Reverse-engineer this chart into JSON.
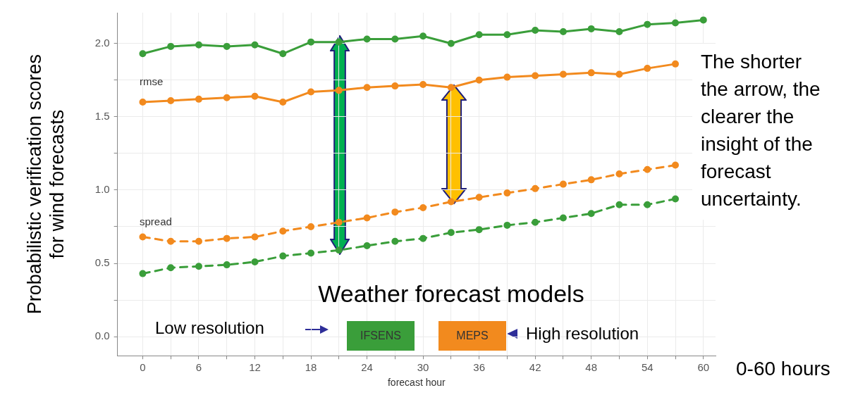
{
  "chart_data": {
    "type": "line",
    "xlabel": "forecast hour",
    "ylabel": "Probabilistic verification scores for wind forecasts",
    "legend_title": "Weather forecast models",
    "x": [
      0,
      3,
      6,
      9,
      12,
      15,
      18,
      21,
      24,
      27,
      30,
      33,
      36,
      39,
      42,
      45,
      48,
      51,
      54,
      57,
      60
    ],
    "series": [
      {
        "name": "IFSENS",
        "color": "#3a9e3a",
        "line_style": "solid",
        "values": [
          1.93,
          1.98,
          1.99,
          1.98,
          1.99,
          1.93,
          2.01,
          2.01,
          2.03,
          2.03,
          2.05,
          2.0,
          2.06,
          2.06,
          2.09,
          2.08,
          2.1,
          2.08,
          2.13,
          2.14,
          2.16
        ]
      },
      {
        "name": "MEPS",
        "color": "#f28a1e",
        "line_style": "solid",
        "values": [
          1.6,
          1.61,
          1.62,
          1.63,
          1.64,
          1.6,
          1.67,
          1.68,
          1.7,
          1.71,
          1.72,
          1.7,
          1.75,
          1.77,
          1.78,
          1.79,
          1.8,
          1.79,
          1.83,
          1.86,
          null
        ]
      },
      {
        "color": "#f28a1e",
        "line_style": "dashed",
        "values": [
          0.68,
          0.65,
          0.65,
          0.67,
          0.68,
          0.72,
          0.75,
          0.78,
          0.81,
          0.85,
          0.88,
          0.92,
          0.95,
          0.98,
          1.01,
          1.04,
          1.07,
          1.11,
          1.14,
          1.17,
          null
        ]
      },
      {
        "color": "#3a9e3a",
        "line_style": "dashed",
        "values": [
          0.43,
          0.47,
          0.48,
          0.49,
          0.51,
          0.55,
          0.57,
          0.59,
          0.62,
          0.65,
          0.67,
          0.71,
          0.73,
          0.76,
          0.78,
          0.81,
          0.84,
          0.9,
          0.9,
          0.94,
          null
        ]
      }
    ],
    "xlim": [
      -2.7,
      61.3
    ],
    "xticks": [
      0,
      {
        "value": 3,
        "label": null
      },
      6,
      {
        "value": 9,
        "label": null
      },
      12,
      {
        "value": 15,
        "label": null
      },
      18,
      {
        "value": 21,
        "label": null
      },
      24,
      {
        "value": 27,
        "label": null
      },
      30,
      {
        "value": 33,
        "label": null
      },
      36,
      {
        "value": 39,
        "label": null
      },
      42,
      {
        "value": 45,
        "label": null
      },
      48,
      {
        "value": 51,
        "label": null
      },
      54,
      {
        "value": 57,
        "label": null
      },
      60
    ],
    "ylim": [
      -0.13,
      2.21
    ],
    "yticks": [
      {
        "value": 0,
        "label": "0.0"
      },
      {
        "value": 0.25,
        "label": null
      },
      {
        "value": 0.5,
        "label": "0.5"
      },
      {
        "value": 0.75,
        "label": null
      },
      {
        "value": 1,
        "label": "1.0"
      },
      {
        "value": 1.25,
        "label": null
      },
      {
        "value": 1.5,
        "label": "1.5"
      },
      {
        "value": 1.75,
        "label": null
      },
      {
        "value": 2,
        "label": "2.0"
      }
    ],
    "grid": true,
    "marker": "circle",
    "legend": "bottom",
    "annotations": [
      "rmse",
      "spread",
      "Low resolution",
      "High resolution",
      "The shorter the arrow, the clearer the insight of the forecast uncertainty.",
      "0-60 hours"
    ]
  }
}
